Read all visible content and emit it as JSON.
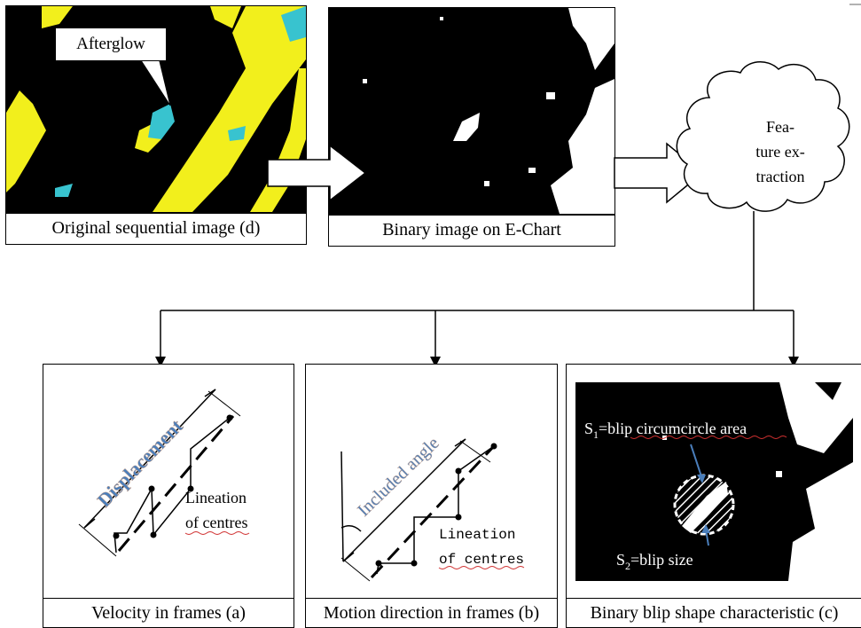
{
  "top": {
    "original": {
      "callout": "Afterglow",
      "caption": "Original sequential image (d)"
    },
    "binary": {
      "caption": "Binary image on E-Chart"
    },
    "cloud": {
      "line1": "Fea-",
      "line2": "ture ex-",
      "line3": "traction"
    }
  },
  "bottom": {
    "velocity": {
      "displacement": "Displacement",
      "lineation1": "Lineation",
      "lineation2": "of centres",
      "caption": "Velocity in frames (a)"
    },
    "direction": {
      "angle": "Included angle",
      "lineation1": "Lineation",
      "lineation2": "of centres",
      "caption": "Motion direction in frames (b)"
    },
    "shape": {
      "s1_sub": "1",
      "s1_text": "=blip circumcircle area",
      "s2_sub": "2",
      "s2_text": "=blip size",
      "caption": "Binary blip shape characteristic (c)"
    }
  },
  "colors": {
    "yellow": "#f2ef1c",
    "cyan": "#38c3cf",
    "black": "#000000",
    "white": "#ffffff",
    "arrow_blue": "#4a7ebb"
  }
}
